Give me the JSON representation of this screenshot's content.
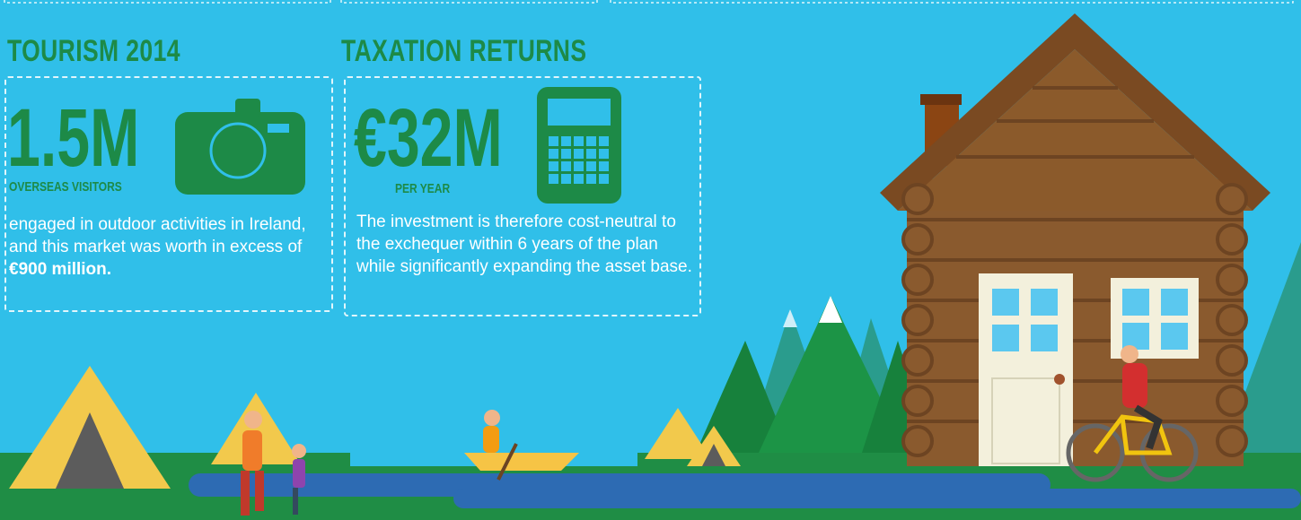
{
  "sections": [
    {
      "title": "TOURISM 2014",
      "figure": "1.5M",
      "figure_caption": "OVERSEAS VISITORS",
      "body": "engaged in outdoor activities in Ireland, and this market was worth in excess of ",
      "body_highlight": "€900 million."
    },
    {
      "title": "TAXATION RETURNS",
      "figure": "€32M",
      "figure_caption": "PER YEAR",
      "body": "The investment is therefore cost-neutral to the exchequer within 6 years of the plan while significantly expanding the asset base."
    }
  ]
}
